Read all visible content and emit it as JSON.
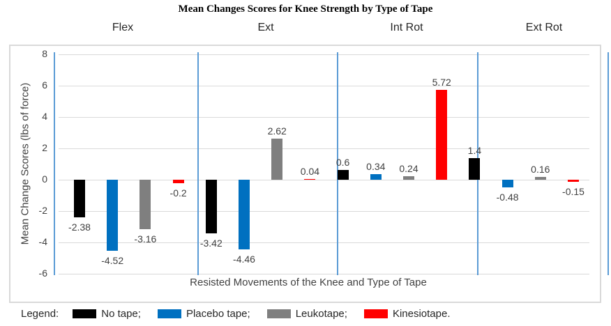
{
  "chart_data": {
    "type": "bar",
    "title": "Mean Changes Scores for Knee Strength by Type of Tape",
    "xlabel": "Resisted Movements of the Knee and Type of Tape",
    "ylabel": "Mean Change Scores (lbs of force)",
    "ylim": [
      -6,
      8
    ],
    "yticks": [
      8,
      6,
      4,
      2,
      0,
      -2,
      -4,
      -6
    ],
    "grid": true,
    "legend_position": "bottom",
    "categories": [
      "Flex",
      "Ext",
      "Int Rot",
      "Ext Rot"
    ],
    "series": [
      {
        "name": "No tape",
        "color": "#000000",
        "values": [
          -2.38,
          -3.42,
          0.6,
          1.4
        ]
      },
      {
        "name": "Placebo tape",
        "color": "#0070C0",
        "values": [
          -4.52,
          -4.46,
          0.34,
          -0.48
        ]
      },
      {
        "name": "Leukotape",
        "color": "#7F7F7F",
        "values": [
          -3.16,
          2.62,
          0.24,
          0.16
        ]
      },
      {
        "name": "Kinesiotape",
        "color": "#FF0000",
        "values": [
          -0.2,
          0.04,
          5.72,
          -0.15
        ]
      }
    ],
    "data_labels": [
      [
        "-2.38",
        "-4.52",
        "-3.16",
        "-0.2"
      ],
      [
        "-3.42",
        "-4.46",
        "2.62",
        "0.04"
      ],
      [
        "0.6",
        "0.34",
        "0.24",
        "5.72"
      ],
      [
        "1.4",
        "-0.48",
        "0.16",
        "-0.15"
      ]
    ]
  },
  "legend": {
    "prefix": "Legend:",
    "items": [
      {
        "label": "No tape;",
        "color": "#000000"
      },
      {
        "label": "Placebo tape;",
        "color": "#0070C0"
      },
      {
        "label": "Leukotape;",
        "color": "#7F7F7F"
      },
      {
        "label": "Kinesiotape.",
        "color": "#FF0000"
      }
    ]
  },
  "colors": {
    "gridline": "#D9D9D9",
    "separator": "#5B9BD5",
    "plot_border": "#D9D9D9",
    "text": "#404040"
  }
}
